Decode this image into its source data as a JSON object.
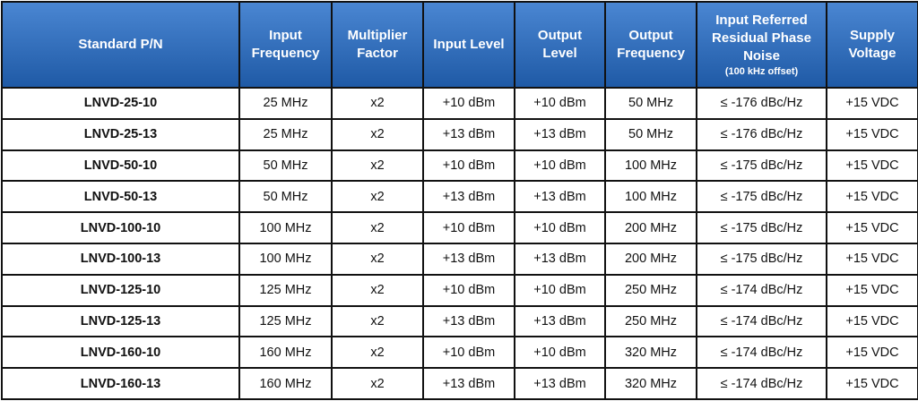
{
  "table": {
    "header": [
      "Standard P/N",
      "Input Frequency",
      "Multiplier Factor",
      "Input Level",
      "Output Level",
      "Output Frequency",
      "Input Referred Residual Phase Noise",
      "Supply Voltage"
    ],
    "header_note": "(100 kHz offset)",
    "rows": [
      [
        "LNVD-25-10",
        "25 MHz",
        "x2",
        "+10 dBm",
        "+10 dBm",
        "50 MHz",
        "≤ -176 dBc/Hz",
        "+15 VDC"
      ],
      [
        "LNVD-25-13",
        "25 MHz",
        "x2",
        "+13 dBm",
        "+13 dBm",
        "50 MHz",
        "≤ -176 dBc/Hz",
        "+15 VDC"
      ],
      [
        "LNVD-50-10",
        "50 MHz",
        "x2",
        "+10 dBm",
        "+10 dBm",
        "100 MHz",
        "≤ -175 dBc/Hz",
        "+15 VDC"
      ],
      [
        "LNVD-50-13",
        "50 MHz",
        "x2",
        "+13 dBm",
        "+13 dBm",
        "100 MHz",
        "≤ -175 dBc/Hz",
        "+15 VDC"
      ],
      [
        "LNVD-100-10",
        "100 MHz",
        "x2",
        "+10 dBm",
        "+10 dBm",
        "200 MHz",
        "≤ -175 dBc/Hz",
        "+15 VDC"
      ],
      [
        "LNVD-100-13",
        "100 MHz",
        "x2",
        "+13 dBm",
        "+13 dBm",
        "200 MHz",
        "≤ -175 dBc/Hz",
        "+15 VDC"
      ],
      [
        "LNVD-125-10",
        "125 MHz",
        "x2",
        "+10 dBm",
        "+10 dBm",
        "250 MHz",
        "≤ -174 dBc/Hz",
        "+15 VDC"
      ],
      [
        "LNVD-125-13",
        "125 MHz",
        "x2",
        "+13 dBm",
        "+13 dBm",
        "250 MHz",
        "≤ -174 dBc/Hz",
        "+15 VDC"
      ],
      [
        "LNVD-160-10",
        "160 MHz",
        "x2",
        "+10 dBm",
        "+10 dBm",
        "320 MHz",
        "≤ -174 dBc/Hz",
        "+15 VDC"
      ],
      [
        "LNVD-160-13",
        "160 MHz",
        "x2",
        "+13 dBm",
        "+13 dBm",
        "320 MHz",
        "≤ -174 dBc/Hz",
        "+15 VDC"
      ]
    ]
  }
}
